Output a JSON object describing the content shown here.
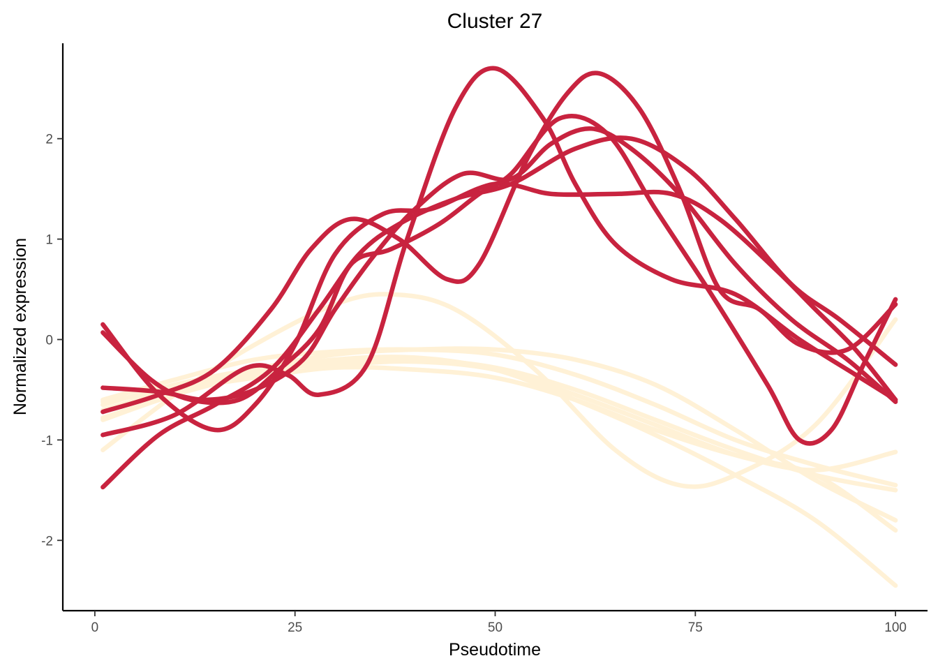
{
  "chart_data": {
    "type": "line",
    "title": "Cluster 27",
    "xlabel": "Pseudotime",
    "ylabel": "Normalized expression",
    "xlim": [
      -4,
      104
    ],
    "ylim": [
      -2.7,
      2.95
    ],
    "xticks": [
      0,
      25,
      50,
      75,
      100
    ],
    "xtick_labels": [
      "0",
      "25",
      "50",
      "75",
      "100"
    ],
    "yticks": [
      -2,
      -1,
      0,
      1,
      2
    ],
    "ytick_labels": [
      "-2",
      "-1",
      "0",
      "1",
      "2"
    ],
    "grid": false,
    "legend": "none",
    "colors": {
      "highlight": "#c8233f",
      "background": "#fff1d6"
    },
    "series": [
      {
        "group": "background",
        "points": [
          [
            1,
            -0.6
          ],
          [
            10,
            -0.4
          ],
          [
            20,
            -0.2
          ],
          [
            30,
            -0.12
          ],
          [
            40,
            -0.1
          ],
          [
            50,
            -0.15
          ],
          [
            60,
            -0.35
          ],
          [
            70,
            -0.65
          ],
          [
            80,
            -1.0
          ],
          [
            90,
            -1.25
          ],
          [
            100,
            -1.45
          ]
        ]
      },
      {
        "group": "background",
        "points": [
          [
            1,
            -0.78
          ],
          [
            10,
            -0.55
          ],
          [
            20,
            -0.3
          ],
          [
            30,
            -0.15
          ],
          [
            40,
            -0.1
          ],
          [
            50,
            -0.1
          ],
          [
            60,
            -0.2
          ],
          [
            70,
            -0.45
          ],
          [
            80,
            -0.9
          ],
          [
            90,
            -1.4
          ],
          [
            100,
            -1.8
          ]
        ]
      },
      {
        "group": "background",
        "points": [
          [
            1,
            -0.8
          ],
          [
            10,
            -0.55
          ],
          [
            20,
            -0.35
          ],
          [
            30,
            -0.22
          ],
          [
            40,
            -0.2
          ],
          [
            50,
            -0.28
          ],
          [
            60,
            -0.5
          ],
          [
            70,
            -0.8
          ],
          [
            80,
            -1.1
          ],
          [
            90,
            -1.35
          ],
          [
            100,
            -1.5
          ]
        ]
      },
      {
        "group": "background",
        "points": [
          [
            1,
            -0.7
          ],
          [
            10,
            -0.5
          ],
          [
            20,
            -0.32
          ],
          [
            30,
            -0.2
          ],
          [
            40,
            -0.18
          ],
          [
            50,
            -0.3
          ],
          [
            60,
            -0.6
          ],
          [
            70,
            -0.95
          ],
          [
            80,
            -1.35
          ],
          [
            90,
            -1.8
          ],
          [
            100,
            -2.45
          ]
        ]
      },
      {
        "group": "background",
        "points": [
          [
            1,
            -1.1
          ],
          [
            10,
            -0.55
          ],
          [
            20,
            -0.05
          ],
          [
            30,
            0.35
          ],
          [
            37,
            0.45
          ],
          [
            45,
            0.3
          ],
          [
            55,
            -0.3
          ],
          [
            65,
            -1.1
          ],
          [
            73,
            -1.45
          ],
          [
            80,
            -1.35
          ],
          [
            90,
            -0.85
          ],
          [
            100,
            0.2
          ]
        ]
      },
      {
        "group": "background",
        "points": [
          [
            1,
            -0.65
          ],
          [
            10,
            -0.45
          ],
          [
            20,
            -0.3
          ],
          [
            30,
            -0.25
          ],
          [
            40,
            -0.22
          ],
          [
            50,
            -0.3
          ],
          [
            60,
            -0.55
          ],
          [
            70,
            -0.85
          ],
          [
            80,
            -1.15
          ],
          [
            90,
            -1.35
          ],
          [
            100,
            -1.9
          ]
        ]
      },
      {
        "group": "background",
        "points": [
          [
            1,
            -0.62
          ],
          [
            10,
            -0.5
          ],
          [
            20,
            -0.38
          ],
          [
            30,
            -0.28
          ],
          [
            40,
            -0.3
          ],
          [
            50,
            -0.38
          ],
          [
            60,
            -0.6
          ],
          [
            70,
            -0.9
          ],
          [
            80,
            -1.15
          ],
          [
            90,
            -1.3
          ],
          [
            100,
            -1.12
          ]
        ]
      },
      {
        "group": "highlight",
        "points": [
          [
            1,
            -1.47
          ],
          [
            8,
            -0.95
          ],
          [
            15,
            -0.65
          ],
          [
            22,
            -0.3
          ],
          [
            28,
            0.3
          ],
          [
            33,
            0.85
          ],
          [
            38,
            1.15
          ],
          [
            45,
            1.4
          ],
          [
            52,
            1.55
          ],
          [
            60,
            1.9
          ],
          [
            67,
            2.0
          ],
          [
            74,
            1.7
          ],
          [
            80,
            1.2
          ],
          [
            87,
            0.55
          ],
          [
            93,
            0.2
          ],
          [
            100,
            -0.25
          ]
        ]
      },
      {
        "group": "highlight",
        "points": [
          [
            1,
            0.15
          ],
          [
            8,
            -0.55
          ],
          [
            15,
            -0.9
          ],
          [
            20,
            -0.65
          ],
          [
            25,
            -0.05
          ],
          [
            30,
            0.85
          ],
          [
            36,
            1.25
          ],
          [
            42,
            1.3
          ],
          [
            50,
            1.55
          ],
          [
            57,
            1.45
          ],
          [
            65,
            1.45
          ],
          [
            72,
            1.45
          ],
          [
            78,
            1.2
          ],
          [
            85,
            0.7
          ],
          [
            90,
            0.3
          ],
          [
            95,
            -0.1
          ],
          [
            100,
            -0.6
          ]
        ]
      },
      {
        "group": "highlight",
        "points": [
          [
            1,
            0.07
          ],
          [
            7,
            -0.4
          ],
          [
            12,
            -0.6
          ],
          [
            18,
            -0.6
          ],
          [
            23,
            -0.3
          ],
          [
            28,
            0.1
          ],
          [
            32,
            0.75
          ],
          [
            37,
            0.9
          ],
          [
            43,
            1.15
          ],
          [
            48,
            1.45
          ],
          [
            52,
            1.65
          ],
          [
            58,
            2.2
          ],
          [
            64,
            2.05
          ],
          [
            70,
            1.3
          ],
          [
            77,
            0.45
          ],
          [
            84,
            -0.45
          ],
          [
            88,
            -1.0
          ],
          [
            92,
            -0.9
          ],
          [
            96,
            -0.25
          ],
          [
            100,
            0.4
          ]
        ]
      },
      {
        "group": "highlight",
        "points": [
          [
            1,
            -0.95
          ],
          [
            10,
            -0.75
          ],
          [
            19,
            -0.28
          ],
          [
            24,
            -0.35
          ],
          [
            28,
            -0.55
          ],
          [
            34,
            -0.25
          ],
          [
            39,
            1.0
          ],
          [
            45,
            2.3
          ],
          [
            50,
            2.7
          ],
          [
            56,
            2.2
          ],
          [
            60,
            1.55
          ],
          [
            65,
            0.95
          ],
          [
            72,
            0.6
          ],
          [
            80,
            0.45
          ],
          [
            88,
            0.0
          ],
          [
            95,
            -0.35
          ],
          [
            100,
            -0.6
          ]
        ]
      },
      {
        "group": "highlight",
        "points": [
          [
            1,
            -0.72
          ],
          [
            8,
            -0.55
          ],
          [
            15,
            -0.3
          ],
          [
            22,
            0.3
          ],
          [
            27,
            0.9
          ],
          [
            32,
            1.2
          ],
          [
            38,
            1.0
          ],
          [
            44,
            0.6
          ],
          [
            48,
            0.75
          ],
          [
            54,
            1.8
          ],
          [
            59,
            2.45
          ],
          [
            63,
            2.65
          ],
          [
            68,
            2.3
          ],
          [
            73,
            1.5
          ],
          [
            78,
            0.5
          ],
          [
            83,
            0.3
          ],
          [
            88,
            -0.05
          ],
          [
            94,
            -0.1
          ],
          [
            100,
            0.35
          ]
        ]
      },
      {
        "group": "highlight",
        "points": [
          [
            1,
            -0.48
          ],
          [
            8,
            -0.52
          ],
          [
            14,
            -0.6
          ],
          [
            20,
            -0.5
          ],
          [
            26,
            -0.2
          ],
          [
            30,
            0.3
          ],
          [
            35,
            0.85
          ],
          [
            40,
            1.3
          ],
          [
            46,
            1.65
          ],
          [
            52,
            1.6
          ],
          [
            57,
            1.95
          ],
          [
            62,
            2.1
          ],
          [
            67,
            1.9
          ],
          [
            73,
            1.45
          ],
          [
            80,
            0.75
          ],
          [
            87,
            0.2
          ],
          [
            94,
            -0.2
          ],
          [
            100,
            -0.62
          ]
        ]
      }
    ]
  }
}
